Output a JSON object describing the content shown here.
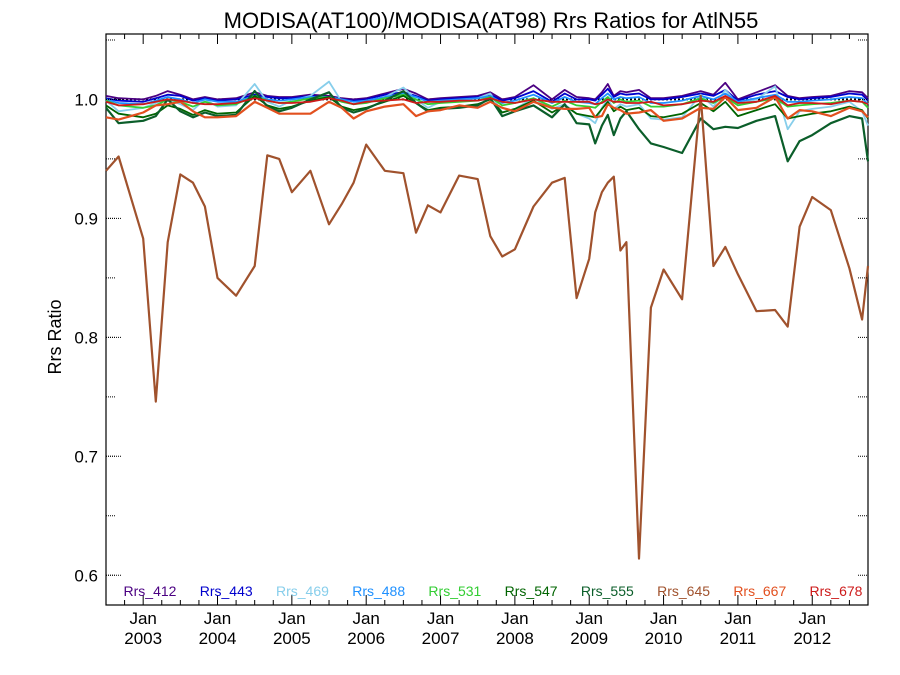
{
  "chart_data": {
    "type": "line",
    "title": "MODISA(AT100)/MODISA(AT98)  Rrs Ratios for AtlN55",
    "xlabel": "",
    "ylabel": "Rrs Ratio",
    "xlim": [
      2002.5,
      2012.75
    ],
    "ylim": [
      0.575,
      1.055
    ],
    "y_ticks": [
      0.6,
      0.7,
      0.8,
      0.9,
      1.0
    ],
    "y_tick_labels": [
      "0.6",
      "0.7",
      "0.8",
      "0.9",
      "1.0"
    ],
    "x_ticks": [
      {
        "value": 2003,
        "line1": "Jan",
        "line2": "2003"
      },
      {
        "value": 2004,
        "line1": "Jan",
        "line2": "2004"
      },
      {
        "value": 2005,
        "line1": "Jan",
        "line2": "2005"
      },
      {
        "value": 2006,
        "line1": "Jan",
        "line2": "2006"
      },
      {
        "value": 2007,
        "line1": "Jan",
        "line2": "2007"
      },
      {
        "value": 2008,
        "line1": "Jan",
        "line2": "2008"
      },
      {
        "value": 2009,
        "line1": "Jan",
        "line2": "2009"
      },
      {
        "value": 2010,
        "line1": "Jan",
        "line2": "2010"
      },
      {
        "value": 2011,
        "line1": "Jan",
        "line2": "2011"
      },
      {
        "value": 2012,
        "line1": "Jan",
        "line2": "2012"
      }
    ],
    "reference_line": 1.0,
    "grid": false,
    "legend_position": "bottom",
    "x": [
      2002.5,
      2002.67,
      2003.0,
      2003.17,
      2003.33,
      2003.5,
      2003.67,
      2003.83,
      2004.0,
      2004.25,
      2004.5,
      2004.67,
      2004.83,
      2005.0,
      2005.25,
      2005.5,
      2005.67,
      2005.83,
      2006.0,
      2006.25,
      2006.5,
      2006.67,
      2006.83,
      2007.0,
      2007.25,
      2007.5,
      2007.67,
      2007.83,
      2008.0,
      2008.25,
      2008.5,
      2008.67,
      2008.83,
      2009.0,
      2009.08,
      2009.17,
      2009.25,
      2009.33,
      2009.42,
      2009.5,
      2009.67,
      2009.83,
      2010.0,
      2010.25,
      2010.5,
      2010.67,
      2010.83,
      2011.0,
      2011.25,
      2011.5,
      2011.67,
      2011.83,
      2012.0,
      2012.25,
      2012.5,
      2012.67,
      2012.75
    ],
    "series": [
      {
        "name": "Rrs_412",
        "color": "#4B0082",
        "values": [
          1.003,
          1.001,
          1.0,
          1.003,
          1.007,
          1.004,
          1.0,
          1.002,
          1.0,
          1.001,
          1.006,
          1.003,
          1.002,
          1.002,
          1.004,
          1.003,
          1.001,
          1.0,
          1.001,
          1.005,
          1.009,
          1.005,
          1.0,
          1.001,
          1.002,
          1.003,
          1.006,
          1.0,
          1.002,
          1.012,
          1.0,
          1.008,
          1.002,
          1.001,
          1.0,
          1.006,
          1.013,
          1.003,
          1.007,
          1.006,
          1.008,
          1.001,
          1.001,
          1.003,
          1.007,
          1.004,
          1.014,
          1.0,
          1.006,
          1.012,
          1.003,
          1.001,
          1.002,
          1.003,
          1.007,
          1.006,
          1.001
        ]
      },
      {
        "name": "Rrs_443",
        "color": "#0000CD",
        "values": [
          1.001,
          0.999,
          0.998,
          1.001,
          1.004,
          1.003,
          0.999,
          1.001,
          0.999,
          1.0,
          1.004,
          1.002,
          1.001,
          1.001,
          1.003,
          1.002,
          1.0,
          0.999,
          1.0,
          1.004,
          1.006,
          1.003,
          0.999,
          1.0,
          1.001,
          1.002,
          1.004,
          0.999,
          1.001,
          1.007,
          0.998,
          1.005,
          1.0,
          1.0,
          0.999,
          1.004,
          1.009,
          1.002,
          1.005,
          1.004,
          1.005,
          1.0,
          1.0,
          1.002,
          1.005,
          1.003,
          1.008,
          0.999,
          1.004,
          1.007,
          1.002,
          1.0,
          1.001,
          1.002,
          1.005,
          1.004,
          0.999
        ]
      },
      {
        "name": "Rrs_469",
        "color": "#87CEEB",
        "values": [
          0.999,
          0.99,
          0.993,
          0.997,
          1.0,
          0.996,
          0.991,
          1.0,
          0.994,
          0.995,
          1.013,
          0.998,
          0.994,
          0.999,
          1.003,
          1.015,
          0.998,
          0.996,
          0.999,
          1.002,
          1.01,
          1.0,
          0.993,
          0.998,
          0.999,
          1.001,
          1.005,
          0.989,
          0.992,
          1.001,
          0.992,
          0.996,
          0.988,
          0.984,
          0.98,
          0.993,
          1.0,
          0.992,
          0.996,
          0.994,
          0.996,
          0.984,
          0.983,
          0.985,
          1.004,
          0.994,
          1.008,
          0.996,
          1.0,
          1.011,
          0.975,
          0.99,
          0.992,
          0.994,
          0.998,
          0.99,
          0.978
        ]
      },
      {
        "name": "Rrs_488",
        "color": "#1E90FF",
        "values": [
          1.0,
          0.997,
          0.996,
          0.999,
          1.002,
          1.0,
          0.997,
          1.0,
          0.998,
          0.998,
          1.003,
          1.0,
          0.999,
          1.0,
          1.002,
          1.002,
          1.0,
          0.998,
          0.999,
          1.002,
          1.005,
          1.002,
          0.998,
          0.999,
          1.0,
          1.001,
          1.003,
          0.997,
          0.999,
          1.004,
          0.997,
          1.002,
          0.998,
          0.997,
          0.996,
          1.001,
          1.005,
          1.0,
          1.002,
          1.001,
          1.002,
          0.997,
          0.997,
          0.999,
          1.003,
          1.0,
          1.005,
          0.998,
          1.001,
          1.004,
          0.998,
          0.998,
          0.999,
          1.0,
          1.002,
          1.001,
          0.996
        ]
      },
      {
        "name": "Rrs_531",
        "color": "#32CD32",
        "values": [
          0.999,
          0.995,
          0.993,
          0.995,
          1.0,
          0.998,
          0.994,
          0.998,
          0.995,
          0.996,
          1.003,
          0.999,
          0.997,
          0.998,
          1.001,
          1.002,
          0.998,
          0.996,
          0.997,
          1.001,
          1.004,
          1.0,
          0.996,
          0.997,
          0.998,
          0.999,
          1.002,
          0.995,
          0.997,
          1.001,
          0.994,
          0.999,
          0.995,
          0.994,
          0.993,
          0.998,
          1.002,
          0.997,
          1.0,
          0.998,
          0.999,
          0.994,
          0.994,
          0.996,
          1.001,
          0.997,
          1.002,
          0.995,
          0.998,
          1.001,
          0.994,
          0.995,
          0.996,
          0.997,
          0.999,
          0.998,
          0.993
        ]
      },
      {
        "name": "Rrs_547",
        "color": "#006400",
        "values": [
          0.995,
          0.988,
          0.985,
          0.988,
          0.995,
          0.992,
          0.987,
          0.991,
          0.988,
          0.989,
          1.003,
          0.995,
          0.992,
          0.994,
          0.999,
          1.002,
          0.994,
          0.991,
          0.993,
          0.998,
          1.003,
          0.997,
          0.991,
          0.993,
          0.994,
          0.996,
          1.0,
          0.989,
          0.992,
          0.999,
          0.989,
          0.995,
          0.988,
          0.986,
          0.985,
          0.992,
          0.998,
          0.99,
          0.994,
          0.991,
          0.993,
          0.986,
          0.985,
          0.988,
          0.997,
          0.99,
          0.998,
          0.986,
          0.991,
          0.996,
          0.984,
          0.986,
          0.988,
          0.99,
          0.994,
          0.991,
          0.984
        ]
      },
      {
        "name": "Rrs_555",
        "color": "#0B5E2A",
        "values": [
          0.993,
          0.98,
          0.982,
          0.986,
          1.0,
          0.99,
          0.985,
          0.989,
          0.986,
          0.987,
          1.007,
          0.994,
          0.99,
          0.993,
          1.0,
          1.006,
          0.993,
          0.989,
          0.992,
          0.999,
          1.007,
          0.997,
          0.99,
          0.992,
          0.993,
          0.995,
          1.001,
          0.986,
          0.99,
          0.995,
          0.985,
          0.996,
          0.98,
          0.979,
          0.963,
          0.978,
          0.987,
          0.97,
          0.984,
          0.99,
          0.975,
          0.963,
          0.96,
          0.955,
          0.984,
          0.975,
          0.977,
          0.976,
          0.982,
          0.986,
          0.948,
          0.965,
          0.97,
          0.98,
          0.986,
          0.984,
          0.948
        ]
      },
      {
        "name": "Rrs_645",
        "color": "#A0522D",
        "values": [
          0.94,
          0.952,
          0.883,
          0.746,
          0.88,
          0.937,
          0.93,
          0.91,
          0.85,
          0.835,
          0.86,
          0.953,
          0.95,
          0.922,
          0.94,
          0.895,
          0.912,
          0.93,
          0.962,
          0.94,
          0.938,
          0.888,
          0.911,
          0.905,
          0.936,
          0.933,
          0.885,
          0.868,
          0.874,
          0.91,
          0.93,
          0.934,
          0.833,
          0.866,
          0.905,
          0.922,
          0.93,
          0.935,
          0.873,
          0.88,
          0.614,
          0.825,
          0.857,
          0.832,
          1.003,
          0.86,
          0.876,
          0.853,
          0.822,
          0.823,
          0.809,
          0.893,
          0.918,
          0.907,
          0.858,
          0.815,
          0.86
        ]
      },
      {
        "name": "Rrs_667",
        "color": "#E2501F",
        "values": [
          0.985,
          0.983,
          0.989,
          0.995,
          0.996,
          0.998,
          0.99,
          0.985,
          0.985,
          0.986,
          0.998,
          0.993,
          0.988,
          0.988,
          0.988,
          0.998,
          0.993,
          0.984,
          0.99,
          0.994,
          0.996,
          0.986,
          0.99,
          0.991,
          0.995,
          0.993,
          0.998,
          0.993,
          0.99,
          0.998,
          0.993,
          0.992,
          0.992,
          0.993,
          0.985,
          0.986,
          0.996,
          0.993,
          0.991,
          0.988,
          0.989,
          0.991,
          0.982,
          0.984,
          0.993,
          0.992,
          1.002,
          0.991,
          0.993,
          1.002,
          0.984,
          0.991,
          0.99,
          0.986,
          0.993,
          0.99,
          0.985
        ]
      },
      {
        "name": "Rrs_678",
        "color": "#CD1A1A",
        "values": [
          0.998,
          0.995,
          0.996,
          0.998,
          1.0,
          0.999,
          0.997,
          0.996,
          0.996,
          0.997,
          1.001,
          0.999,
          0.997,
          0.997,
          0.998,
          1.001,
          0.999,
          0.996,
          0.998,
          0.999,
          1.0,
          0.997,
          0.998,
          0.998,
          0.999,
          0.999,
          1.001,
          0.998,
          0.997,
          1.0,
          0.998,
          0.998,
          0.998,
          0.998,
          0.996,
          0.997,
          1.0,
          0.998,
          0.998,
          0.997,
          0.997,
          0.998,
          0.995,
          0.996,
          0.999,
          0.998,
          1.003,
          0.997,
          0.998,
          1.003,
          0.995,
          0.997,
          0.997,
          0.996,
          0.999,
          0.998,
          0.996
        ]
      }
    ]
  }
}
